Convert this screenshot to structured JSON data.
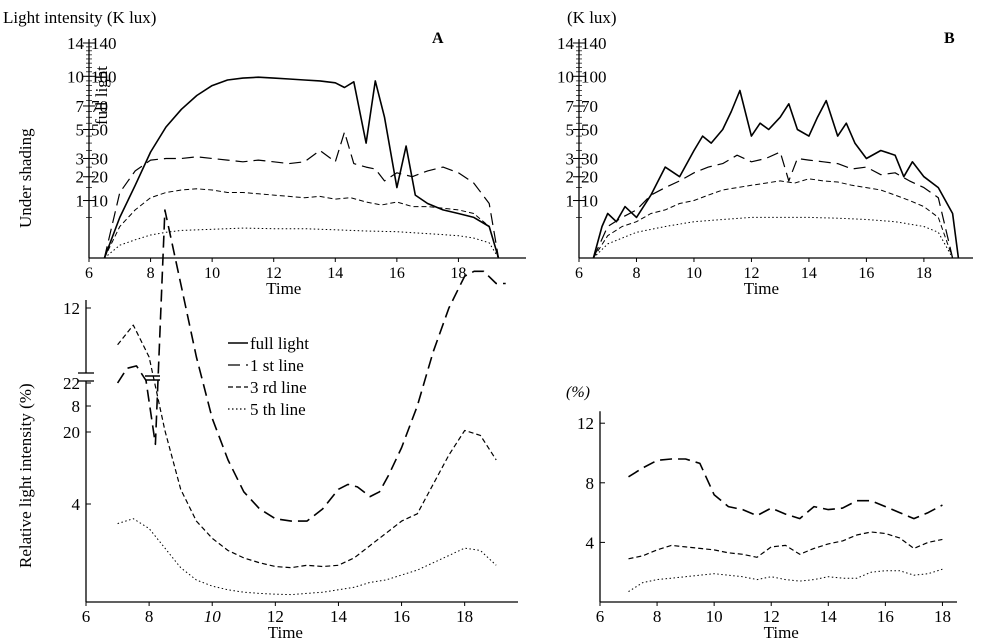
{
  "chart_data": [
    {
      "id": "A",
      "type": "line",
      "panel_label": "A",
      "title": "Light intensity (K lux)",
      "xlabel": "Time",
      "ylabel_left": "Under shading",
      "ylabel_right": "full light",
      "xlim": [
        6,
        20
      ],
      "x_ticks": [
        6,
        8,
        10,
        12,
        14,
        16,
        18
      ],
      "y_scale": "sqrt",
      "y_ticks_inner": [
        1,
        2,
        3,
        5,
        7,
        10,
        14
      ],
      "y_ticks_outer": [
        10,
        20,
        30,
        50,
        70,
        100,
        140
      ],
      "series": [
        {
          "style": "solid",
          "width": 1.6,
          "x": [
            6.5,
            7,
            7.5,
            8,
            8.5,
            9,
            9.5,
            10,
            10.5,
            11,
            11.5,
            12,
            12.5,
            13,
            13.5,
            14,
            14.3,
            14.6,
            15,
            15.3,
            15.6,
            16,
            16.3,
            16.6,
            17,
            17.5,
            18,
            18.5,
            19,
            19.3
          ],
          "y": [
            0,
            5,
            16,
            34,
            52,
            67,
            80,
            90,
            96,
            98,
            99,
            98,
            97,
            96,
            95,
            93,
            88,
            94,
            40,
            95,
            60,
            15,
            38,
            12,
            9,
            7,
            6,
            5,
            3,
            0
          ]
        },
        {
          "style": "longdash",
          "width": 1.2,
          "x": [
            6.5,
            7,
            7.5,
            8,
            8.5,
            9,
            9.5,
            10,
            10.5,
            11,
            11.5,
            12,
            12.5,
            13,
            13.5,
            14,
            14.3,
            14.6,
            15,
            15.3,
            15.6,
            16,
            16.5,
            17,
            17.5,
            18,
            18.5,
            19,
            19.3
          ],
          "y": [
            0,
            13,
            23,
            29,
            30,
            30,
            31,
            30,
            29,
            28,
            29,
            28,
            27,
            28,
            35,
            28,
            48,
            27,
            25,
            24,
            18,
            22,
            20,
            23,
            25,
            22,
            17,
            9,
            0
          ]
        },
        {
          "style": "dash",
          "width": 1.0,
          "x": [
            6.5,
            7,
            7.5,
            8,
            8.5,
            9,
            9.5,
            10,
            10.5,
            11,
            11.5,
            12,
            12.5,
            13,
            13.5,
            14,
            14.5,
            15,
            15.5,
            16,
            16.5,
            17,
            17.5,
            18,
            18.5,
            19,
            19.3
          ],
          "y": [
            0,
            3,
            7,
            11,
            13,
            14,
            14.5,
            14,
            13,
            13,
            12.5,
            12,
            11.5,
            11,
            11.5,
            10.5,
            11,
            9.5,
            8.5,
            9.5,
            8,
            8,
            7.5,
            7,
            6,
            3,
            0
          ]
        },
        {
          "style": "dot",
          "width": 1.0,
          "x": [
            6.5,
            7,
            7.5,
            8,
            8.5,
            9,
            10,
            11,
            12,
            13,
            14,
            15,
            16,
            17,
            18,
            18.5,
            19,
            19.3
          ],
          "y": [
            0,
            0.5,
            1,
            1.6,
            2,
            2.3,
            2.5,
            2.7,
            2.6,
            2.6,
            2.4,
            2.2,
            2.1,
            1.8,
            1.5,
            1.2,
            0.7,
            0
          ]
        }
      ]
    },
    {
      "id": "B",
      "type": "line",
      "panel_label": "B",
      "title": "(K lux)",
      "xlabel": "Time",
      "xlim": [
        6,
        19.5
      ],
      "x_ticks": [
        6,
        8,
        10,
        12,
        14,
        16,
        18
      ],
      "y_scale": "sqrt",
      "y_ticks_inner": [
        1,
        2,
        3,
        5,
        7,
        10,
        14
      ],
      "y_ticks_outer": [
        10,
        20,
        30,
        50,
        70,
        100,
        140
      ],
      "series": [
        {
          "style": "solid",
          "width": 1.6,
          "x": [
            6.5,
            6.8,
            7,
            7.3,
            7.6,
            8,
            8.5,
            9,
            9.5,
            10,
            10.3,
            10.6,
            11,
            11.3,
            11.6,
            12,
            12.3,
            12.6,
            13,
            13.3,
            13.6,
            14,
            14.3,
            14.6,
            15,
            15.3,
            15.6,
            16,
            16.5,
            17,
            17.3,
            17.6,
            18,
            18.5,
            19,
            19.2
          ],
          "y": [
            0,
            3,
            6,
            4,
            8,
            5,
            12,
            25,
            20,
            35,
            45,
            40,
            50,
            65,
            85,
            45,
            55,
            50,
            60,
            72,
            50,
            45,
            60,
            75,
            45,
            55,
            40,
            30,
            35,
            32,
            20,
            28,
            20,
            15,
            6,
            0
          ]
        },
        {
          "style": "longdash",
          "width": 1.2,
          "x": [
            6.5,
            7,
            7.5,
            8,
            8.5,
            9,
            9.5,
            10,
            10.5,
            11,
            11.5,
            12,
            12.5,
            13,
            13.3,
            13.6,
            14,
            14.5,
            15,
            15.5,
            16,
            16.5,
            17,
            17.5,
            18,
            18.5,
            19
          ],
          "y": [
            0,
            3,
            5,
            7,
            12,
            15,
            18,
            22,
            25,
            27,
            32,
            28,
            30,
            34,
            18,
            30,
            29,
            28,
            27,
            24,
            25,
            21,
            22,
            18,
            15,
            11,
            0
          ]
        },
        {
          "style": "dash",
          "width": 1.0,
          "x": [
            6.5,
            7,
            7.5,
            8,
            8.5,
            9,
            9.5,
            10,
            10.5,
            11,
            11.5,
            12,
            12.5,
            13,
            13.5,
            14,
            14.5,
            15,
            15.5,
            16,
            16.5,
            17,
            17.5,
            18,
            18.5,
            19
          ],
          "y": [
            0,
            1.5,
            3,
            4,
            6,
            7,
            9,
            10,
            12,
            14,
            15,
            16,
            17,
            18,
            17,
            19,
            18,
            17.5,
            16,
            15,
            14,
            12,
            10,
            8,
            5,
            0
          ]
        },
        {
          "style": "dot",
          "width": 1.0,
          "x": [
            6.5,
            7,
            7.5,
            8,
            9,
            10,
            11,
            12,
            13,
            14,
            15,
            16,
            17,
            18,
            18.5,
            19
          ],
          "y": [
            0,
            0.6,
            1.2,
            2,
            3,
            4,
            4.5,
            5,
            5,
            5,
            4.8,
            4.5,
            4,
            3,
            2,
            0
          ]
        }
      ]
    },
    {
      "id": "C",
      "type": "line",
      "xlabel": "Time",
      "ylabel": "Relative light intensity (%)",
      "xlim": [
        6,
        19.5
      ],
      "x_ticks": [
        6,
        8,
        10,
        12,
        14,
        16,
        18
      ],
      "axis_break": true,
      "y_ticks_low": [
        4,
        8,
        12
      ],
      "y_ticks_high": [
        20,
        22
      ],
      "legend": {
        "placement": "top-center",
        "entries": [
          {
            "label": "full light",
            "style": "solid"
          },
          {
            "label": "1 st  line",
            "style": "longdash"
          },
          {
            "label": "3 rd  line",
            "style": "dash"
          },
          {
            "label": "5 th  line",
            "style": "dot"
          }
        ]
      },
      "series": [
        {
          "style": "longdash",
          "width": 1.6,
          "x": [
            7,
            7.3,
            7.6,
            7.9,
            8.2,
            8.5,
            9,
            9.5,
            10,
            10.5,
            11,
            11.5,
            12,
            12.5,
            13,
            13.5,
            14,
            14.3,
            14.6,
            15,
            15.3,
            15.6,
            16,
            16.5,
            17,
            17.5,
            18,
            18.3,
            18.6,
            19,
            19.3
          ],
          "y": [
            22,
            22.6,
            22.7,
            22.1,
            19.5,
            16,
            13,
            10,
            7.5,
            5.8,
            4.5,
            3.8,
            3.4,
            3.3,
            3.3,
            3.8,
            4.6,
            4.8,
            4.7,
            4.3,
            4.5,
            5.2,
            6.3,
            8,
            10.2,
            12,
            13.3,
            13.5,
            13.5,
            13,
            13
          ]
        },
        {
          "style": "dash",
          "width": 1.2,
          "x": [
            7,
            7.5,
            8,
            8.5,
            9,
            9.5,
            10,
            10.5,
            11,
            11.5,
            12,
            12.5,
            13,
            13.5,
            14,
            14.5,
            15,
            15.5,
            16,
            16.5,
            17,
            17.5,
            18,
            18.5,
            19
          ],
          "y": [
            10.5,
            11.3,
            10,
            7,
            4.6,
            3.3,
            2.6,
            2.1,
            1.8,
            1.6,
            1.45,
            1.4,
            1.5,
            1.45,
            1.5,
            1.8,
            2.3,
            2.8,
            3.3,
            3.6,
            4.8,
            6,
            7,
            6.8,
            5.8
          ]
        },
        {
          "style": "dot",
          "width": 1.0,
          "x": [
            7,
            7.5,
            8,
            8.5,
            9,
            9.5,
            10,
            10.5,
            11,
            11.5,
            12,
            12.5,
            13,
            13.5,
            14,
            14.5,
            15,
            15.5,
            16,
            16.5,
            17,
            17.5,
            18,
            18.5,
            19
          ],
          "y": [
            3.2,
            3.4,
            3,
            2.2,
            1.4,
            0.9,
            0.65,
            0.5,
            0.4,
            0.35,
            0.32,
            0.3,
            0.35,
            0.4,
            0.5,
            0.6,
            0.8,
            0.9,
            1.1,
            1.3,
            1.6,
            1.9,
            2.2,
            2.1,
            1.5
          ]
        }
      ]
    },
    {
      "id": "D",
      "type": "line",
      "title": "(%)",
      "xlabel": "Time",
      "xlim": [
        6,
        18.3
      ],
      "x_ticks": [
        6,
        8,
        10,
        12,
        14,
        16,
        18
      ],
      "ylim": [
        0,
        12.8
      ],
      "y_ticks": [
        4,
        8,
        12
      ],
      "series": [
        {
          "style": "longdash",
          "width": 1.6,
          "x": [
            7,
            7.5,
            8,
            8.5,
            9,
            9.5,
            10,
            10.5,
            11,
            11.5,
            12,
            12.5,
            13,
            13.5,
            14,
            14.5,
            15,
            15.5,
            16,
            16.5,
            17,
            17.5,
            18
          ],
          "y": [
            8.4,
            9,
            9.5,
            9.6,
            9.6,
            9.3,
            7.2,
            6.4,
            6.2,
            5.8,
            6.3,
            5.9,
            5.6,
            6.4,
            6.2,
            6.3,
            6.8,
            6.8,
            6.4,
            6,
            5.6,
            6,
            6.5
          ]
        },
        {
          "style": "dash",
          "width": 1.2,
          "x": [
            7,
            7.5,
            8,
            8.5,
            9,
            9.5,
            10,
            10.5,
            11,
            11.5,
            12,
            12.5,
            13,
            13.5,
            14,
            14.5,
            15,
            15.5,
            16,
            16.5,
            17,
            17.5,
            18
          ],
          "y": [
            2.9,
            3.1,
            3.5,
            3.8,
            3.7,
            3.6,
            3.5,
            3.3,
            3.2,
            3,
            3.7,
            3.8,
            3.2,
            3.6,
            3.9,
            4.1,
            4.5,
            4.7,
            4.6,
            4.3,
            3.6,
            4,
            4.2
          ]
        },
        {
          "style": "dot",
          "width": 1.0,
          "x": [
            7,
            7.5,
            8,
            8.5,
            9,
            9.5,
            10,
            10.5,
            11,
            11.5,
            12,
            12.5,
            13,
            13.5,
            14,
            14.5,
            15,
            15.5,
            16,
            16.5,
            17,
            17.5,
            18
          ],
          "y": [
            0.7,
            1.3,
            1.5,
            1.6,
            1.7,
            1.8,
            1.9,
            1.8,
            1.7,
            1.5,
            1.7,
            1.5,
            1.4,
            1.5,
            1.7,
            1.6,
            1.6,
            2,
            2.1,
            2.1,
            1.8,
            1.9,
            2.2
          ]
        }
      ]
    }
  ]
}
